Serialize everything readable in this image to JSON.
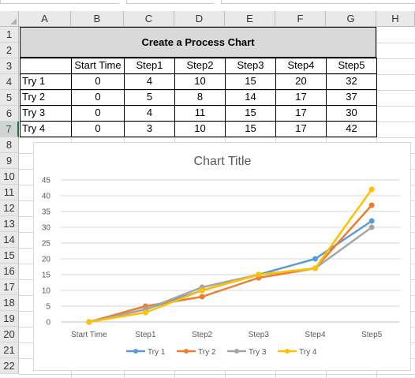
{
  "columns": [
    "A",
    "B",
    "C",
    "D",
    "E",
    "F",
    "G",
    "H"
  ],
  "rows": [
    "1",
    "2",
    "3",
    "4",
    "5",
    "6",
    "7",
    "8",
    "9",
    "10",
    "11",
    "12",
    "13",
    "14",
    "15",
    "16",
    "17",
    "18",
    "19",
    "20",
    "21",
    "22"
  ],
  "active_row": "7",
  "sheet": {
    "title": "Create a Process Chart",
    "headers": [
      "",
      "Start Time",
      "Step1",
      "Step2",
      "Step3",
      "Step4",
      "Step5"
    ],
    "data": [
      [
        "Try 1",
        "0",
        "4",
        "10",
        "15",
        "20",
        "32"
      ],
      [
        "Try 2",
        "0",
        "5",
        "8",
        "14",
        "17",
        "37"
      ],
      [
        "Try 3",
        "0",
        "4",
        "11",
        "15",
        "17",
        "30"
      ],
      [
        "Try 4",
        "0",
        "3",
        "10",
        "15",
        "17",
        "42"
      ]
    ]
  },
  "chart_data": {
    "type": "line",
    "title": "Chart Title",
    "categories": [
      "Start Time",
      "Step1",
      "Step2",
      "Step3",
      "Step4",
      "Step5"
    ],
    "ylim": [
      0,
      45
    ],
    "yticks": [
      "0",
      "5",
      "10",
      "15",
      "20",
      "25",
      "30",
      "35",
      "40",
      "45"
    ],
    "grid": true,
    "legend_position": "bottom",
    "series": [
      {
        "name": "Try 1",
        "values": [
          0,
          4,
          10,
          15,
          20,
          32
        ],
        "color": "#5b9bd5"
      },
      {
        "name": "Try 2",
        "values": [
          0,
          5,
          8,
          14,
          17,
          37
        ],
        "color": "#ed7d31"
      },
      {
        "name": "Try 3",
        "values": [
          0,
          4,
          11,
          15,
          17,
          30
        ],
        "color": "#a5a5a5"
      },
      {
        "name": "Try 4",
        "values": [
          0,
          3,
          10,
          15,
          17,
          42
        ],
        "color": "#ffc000"
      }
    ]
  }
}
